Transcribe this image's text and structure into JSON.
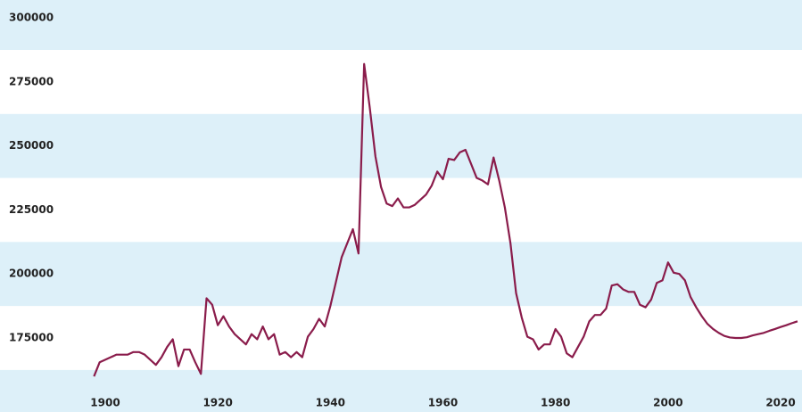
{
  "chart_data": {
    "type": "line",
    "color": "#8a1c4b",
    "x": [
      1898,
      1899,
      1900,
      1901,
      1902,
      1903,
      1904,
      1905,
      1906,
      1907,
      1908,
      1909,
      1910,
      1911,
      1912,
      1913,
      1914,
      1915,
      1916,
      1917,
      1918,
      1919,
      1920,
      1921,
      1922,
      1923,
      1924,
      1925,
      1926,
      1927,
      1928,
      1929,
      1930,
      1931,
      1932,
      1933,
      1934,
      1935,
      1936,
      1937,
      1938,
      1939,
      1940,
      1941,
      1942,
      1943,
      1944,
      1945,
      1946,
      1947,
      1948,
      1949,
      1950,
      1951,
      1952,
      1953,
      1954,
      1955,
      1956,
      1957,
      1958,
      1959,
      1960,
      1961,
      1962,
      1963,
      1964,
      1965,
      1966,
      1967,
      1968,
      1969,
      1970,
      1971,
      1972,
      1973,
      1974,
      1975,
      1976,
      1977,
      1978,
      1979,
      1980,
      1981,
      1982,
      1983,
      1984,
      1985,
      1986,
      1987,
      1988,
      1989,
      1990,
      1991,
      1992,
      1993,
      1994,
      1995,
      1996,
      1997,
      1998,
      1999,
      2000,
      2001,
      2002,
      2003,
      2004,
      2005,
      2006,
      2007,
      2008,
      2009,
      2010,
      2011,
      2012,
      2013,
      2014,
      2015,
      2016,
      2017,
      2018,
      2019,
      2020,
      2021,
      2022,
      2023
    ],
    "values": [
      160000,
      165500,
      166500,
      167500,
      168500,
      168500,
      168500,
      169500,
      169500,
      168500,
      166500,
      164500,
      167500,
      171500,
      174500,
      164000,
      170500,
      170500,
      165500,
      161000,
      190500,
      188000,
      180000,
      183500,
      179500,
      176500,
      174500,
      172500,
      176500,
      174500,
      179500,
      174500,
      176500,
      168500,
      169500,
      167500,
      169500,
      167500,
      175500,
      178500,
      182500,
      179500,
      187500,
      197000,
      206500,
      212000,
      217500,
      208000,
      282000,
      265000,
      246000,
      234000,
      227500,
      226500,
      229500,
      226000,
      226000,
      227000,
      229000,
      231000,
      234500,
      240000,
      237000,
      245000,
      244500,
      247500,
      248500,
      243000,
      237500,
      236500,
      235000,
      245500,
      236500,
      226000,
      212000,
      192500,
      183000,
      175500,
      174500,
      170500,
      172500,
      172500,
      178500,
      175500,
      169000,
      167500,
      171500,
      175500,
      181500,
      184000,
      184000,
      186500,
      195500,
      196000,
      194000,
      193000,
      193000,
      188000,
      187000,
      190000,
      196500,
      197500,
      204500,
      200500,
      200000,
      197500,
      191000,
      187000,
      183500,
      180500,
      178500,
      177000,
      175800,
      175200,
      175000,
      175000,
      175300,
      176000,
      176500,
      177000,
      177800,
      178500,
      179300,
      180000,
      180800,
      181500
    ],
    "xlim": [
      1881.3,
      2023.8
    ],
    "xticks": [
      1900,
      1920,
      1940,
      1960,
      1980,
      2000,
      2020
    ],
    "ylim": [
      146100,
      307000
    ],
    "yticks": [
      175000,
      200000,
      225000,
      250000,
      275000,
      300000
    ]
  }
}
